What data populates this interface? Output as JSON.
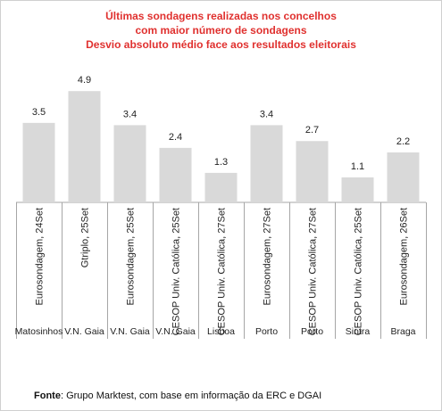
{
  "title_lines": [
    "Últimas sondagens realizadas nos concelhos",
    "com maior número de sondagens",
    "Desvio absoluto médio face aos resultados eleitorais"
  ],
  "source": {
    "label": "Fonte",
    "text": ": Grupo Marktest, com base em informação da ERC e DGAI"
  },
  "colors": {
    "title": "#e0312f",
    "bar": "#d9d9d9",
    "grid": "#a6a6a6"
  },
  "chart_data": {
    "type": "bar",
    "categories": [
      {
        "poll": "Eurosondagem, 24Set",
        "place": "Matosinhos"
      },
      {
        "poll": "Gtriplo, 25Set",
        "place": "V.N. Gaia"
      },
      {
        "poll": "Eurosondagem, 25Set",
        "place": "V.N. Gaia"
      },
      {
        "poll": "CESOP Univ. Católica, 25Set",
        "place": "V.N. Gaia"
      },
      {
        "poll": "CESOP Univ. Católica, 27Set",
        "place": "Lisboa"
      },
      {
        "poll": "Eurosondagem, 27Set",
        "place": "Porto"
      },
      {
        "poll": "CESOP Univ. Católica, 27Set",
        "place": "Porto"
      },
      {
        "poll": "CESOP Univ. Católica, 25Set",
        "place": "Sintra"
      },
      {
        "poll": "Eurosondagem, 26Set",
        "place": "Braga"
      }
    ],
    "values": [
      3.5,
      4.9,
      3.4,
      2.4,
      1.3,
      3.4,
      2.7,
      1.1,
      2.2
    ],
    "value_labels": [
      "3.5",
      "4.9",
      "3.4",
      "2.4",
      "1.3",
      "3.4",
      "2.7",
      "1.1",
      "2.2"
    ],
    "ylim": [
      0,
      5.3
    ],
    "grid": false,
    "legend": "none"
  }
}
